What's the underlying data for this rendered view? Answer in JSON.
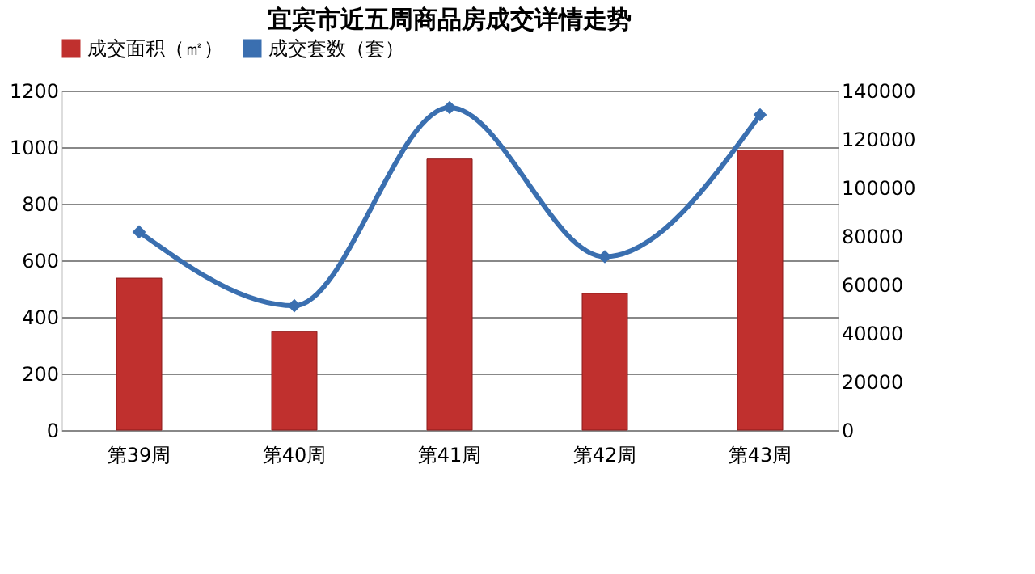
{
  "chart_data": {
    "type": "bar",
    "title": "宜宾市近五周商品房成交详情走势",
    "categories": [
      "第39周",
      "第40周",
      "第41周",
      "第42周",
      "第43周"
    ],
    "series": [
      {
        "name": "成交面积（㎡）",
        "color": "#c0302e",
        "values": [
          537,
          348,
          958,
          483,
          990
        ]
      },
      {
        "name": "成交套数（套）",
        "type": "line",
        "axis": "y2",
        "color": "#3a6fb0",
        "marker": "diamond",
        "values": [
          81700,
          51300,
          133000,
          71500,
          130000
        ]
      }
    ],
    "ylim": [
      0,
      1200
    ],
    "yticks": [
      0,
      200,
      400,
      600,
      800,
      1000,
      1200
    ],
    "y2lim": [
      0,
      140000
    ],
    "y2ticks": [
      0,
      20000,
      40000,
      60000,
      80000,
      100000,
      120000,
      140000
    ],
    "grid": "y",
    "legend": "top"
  }
}
